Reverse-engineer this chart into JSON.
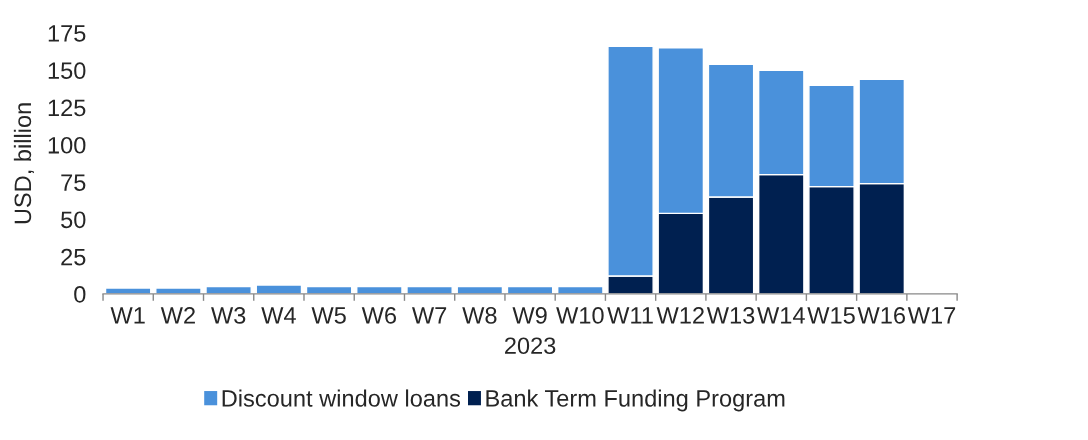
{
  "chart_data": {
    "type": "bar",
    "stacked": true,
    "categories": [
      "W1",
      "W2",
      "W3",
      "W4",
      "W5",
      "W6",
      "W7",
      "W8",
      "W9",
      "W10",
      "W11",
      "W12",
      "W13",
      "W14",
      "W15",
      "W16",
      "W17"
    ],
    "xlabel": "2023",
    "ylabel": "USD, billion",
    "ylim": [
      0,
      175
    ],
    "yticks": [
      0,
      25,
      50,
      75,
      100,
      125,
      150,
      175
    ],
    "legend": "bottom",
    "series": [
      {
        "name": "Bank Term Funding Program",
        "color": "#002050",
        "values": [
          null,
          null,
          null,
          null,
          null,
          null,
          null,
          null,
          null,
          null,
          12,
          54,
          65,
          80,
          72,
          74,
          null
        ]
      },
      {
        "name": "Discount window loans",
        "color": "#4a91db",
        "values": [
          4,
          4,
          5,
          6,
          5,
          5,
          5,
          5,
          5,
          5,
          154,
          111,
          89,
          70,
          68,
          70,
          null
        ]
      }
    ]
  }
}
